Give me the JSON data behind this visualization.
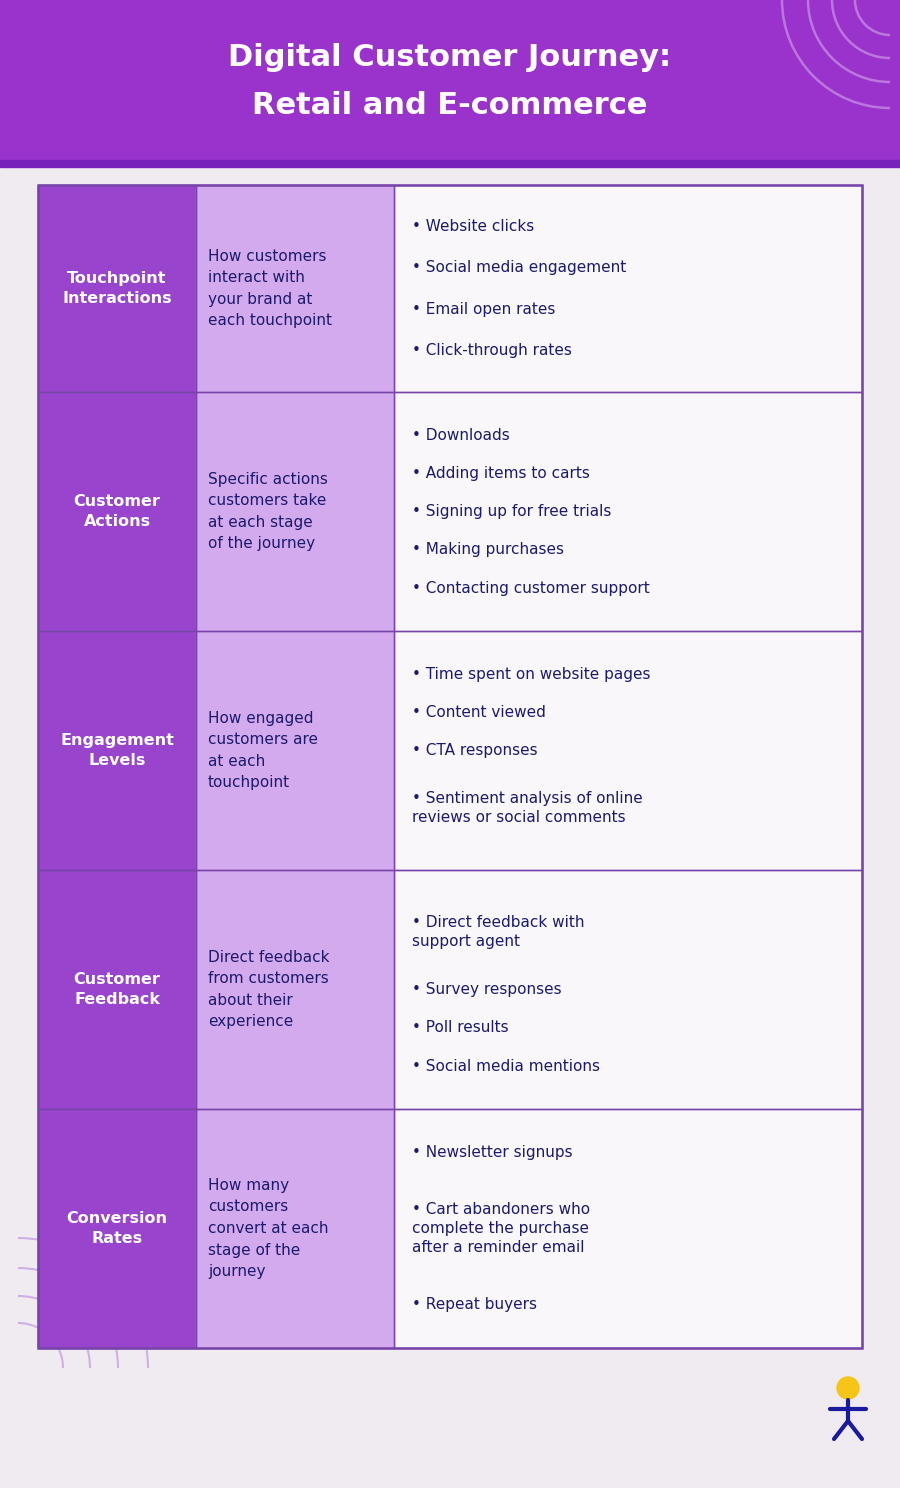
{
  "title_line1": "Digital Customer Journey:",
  "title_line2": "Retail and E-commerce",
  "title_bg_color": "#9933CC",
  "title_text_color": "#FFFFFF",
  "body_bg_color": "#F0EBF0",
  "table_border_color": "#7744AA",
  "col1_bg_color": "#9944CC",
  "col2_bg_color": "#D4AAEE",
  "col3_bg_color": "#FAF7FA",
  "label_text_color": "#FFFFFF",
  "desc_text_color": "#1A1A6E",
  "bullet_text_color": "#1A1A6E",
  "arc_color": "#BB88DD",
  "logo_circle_color": "#F5C518",
  "logo_body_color": "#1A1A9E",
  "purple_stripe_color": "#7722BB",
  "rows": [
    {
      "label": "Touchpoint\nInteractions",
      "description": "How customers\ninteract with\nyour brand at\neach touchpoint",
      "bullets": [
        "Website clicks",
        "Social media engagement",
        "Email open rates",
        "Click-through rates"
      ]
    },
    {
      "label": "Customer\nActions",
      "description": "Specific actions\ncustomers take\nat each stage\nof the journey",
      "bullets": [
        "Downloads",
        "Adding items to carts",
        "Signing up for free trials",
        "Making purchases",
        "Contacting customer support"
      ]
    },
    {
      "label": "Engagement\nLevels",
      "description": "How engaged\ncustomers are\nat each\ntouchpoint",
      "bullets": [
        "Time spent on website pages",
        "Content viewed",
        "CTA responses",
        "Sentiment analysis of online\nreviews or social comments"
      ]
    },
    {
      "label": "Customer\nFeedback",
      "description": "Direct feedback\nfrom customers\nabout their\nexperience",
      "bullets": [
        "Direct feedback with\nsupport agent",
        "Survey responses",
        "Poll results",
        "Social media mentions"
      ]
    },
    {
      "label": "Conversion\nRates",
      "description": "How many\ncustomers\nconvert at each\nstage of the\njourney",
      "bullets": [
        "Newsletter signups",
        "Cart abandoners who\ncomplete the purchase\nafter a reminder email",
        "Repeat buyers"
      ]
    }
  ]
}
